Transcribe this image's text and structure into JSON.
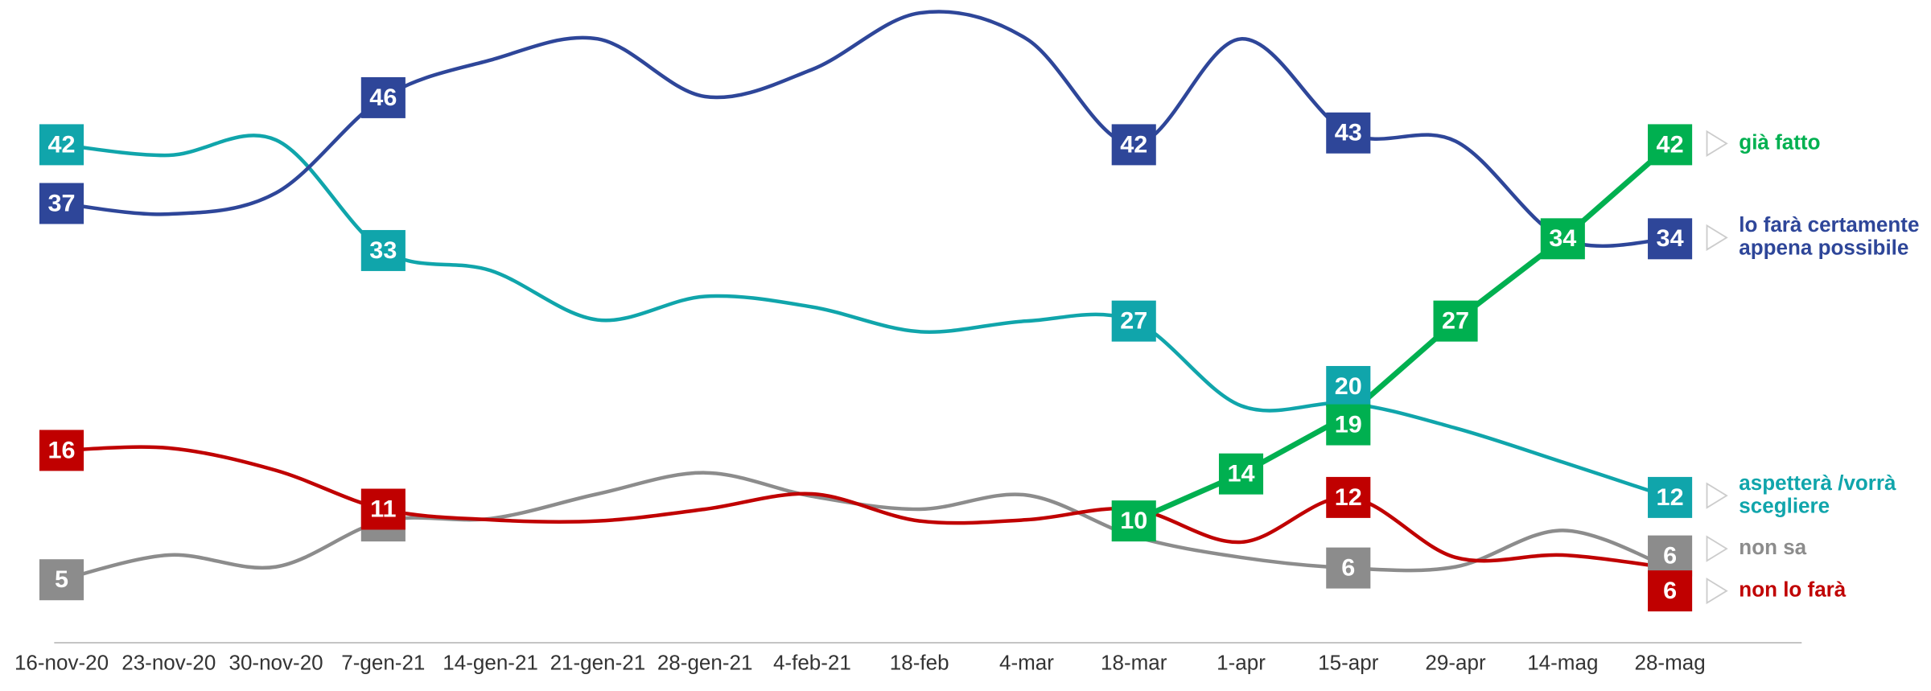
{
  "chart_data": {
    "type": "line",
    "categories": [
      "16-nov-20",
      "23-nov-20",
      "30-nov-20",
      "7-gen-21",
      "14-gen-21",
      "21-gen-21",
      "28-gen-21",
      "4-feb-21",
      "18-feb",
      "4-mar",
      "18-mar",
      "1-apr",
      "15-apr",
      "29-apr",
      "14-mag",
      "28-mag"
    ],
    "ylim": [
      0,
      54
    ],
    "series": [
      {
        "name": "già fatto",
        "color": "#00b050",
        "smooth": false,
        "values": [
          null,
          null,
          null,
          null,
          null,
          null,
          null,
          null,
          null,
          null,
          10,
          14,
          19,
          27,
          34,
          42
        ],
        "value_labels": [
          null,
          null,
          null,
          null,
          null,
          null,
          null,
          null,
          null,
          null,
          "10",
          "14",
          "19",
          "27",
          "34",
          "42"
        ]
      },
      {
        "name": "lo farà certamente appena possibile",
        "color": "#2e4699",
        "smooth": true,
        "values": [
          37,
          36.1,
          37.9,
          46,
          49.2,
          51,
          46.1,
          48.4,
          53.2,
          51,
          42,
          51,
          43,
          42.3,
          34,
          34
        ],
        "value_labels": [
          "37",
          null,
          null,
          "46",
          null,
          null,
          null,
          null,
          null,
          null,
          "42",
          null,
          "43",
          null,
          null,
          "34"
        ]
      },
      {
        "name": "aspetterà /vorrà scegliere",
        "color": "#10a5ab",
        "smooth": true,
        "values": [
          42,
          41.1,
          42.4,
          33,
          31.3,
          27.1,
          29.1,
          28.2,
          26.1,
          27,
          27,
          19.8,
          20,
          17.9,
          15,
          12
        ],
        "value_labels": [
          "42",
          null,
          null,
          "33",
          null,
          null,
          null,
          null,
          null,
          null,
          "27",
          null,
          "20",
          null,
          null,
          "12"
        ]
      },
      {
        "name": "non sa",
        "color": "#8c8c8c",
        "smooth": true,
        "values": [
          5,
          7.1,
          6.1,
          10,
          10.2,
          12.3,
          14.1,
          12.1,
          11,
          12.2,
          8.7,
          6.9,
          6,
          6.1,
          9.2,
          6
        ],
        "value_labels": [
          "5",
          null,
          null,
          "10",
          null,
          null,
          null,
          null,
          null,
          null,
          null,
          null,
          "6",
          null,
          null,
          "6"
        ]
      },
      {
        "name": "non lo farà",
        "color": "#c00000",
        "smooth": true,
        "values": [
          16,
          16.2,
          14.3,
          11,
          10.1,
          10,
          11,
          12.3,
          10,
          10.1,
          11,
          8.2,
          12,
          6.9,
          7.1,
          6
        ],
        "value_labels": [
          "16",
          null,
          null,
          "11",
          null,
          null,
          null,
          null,
          null,
          null,
          null,
          null,
          "12",
          null,
          null,
          "6"
        ]
      }
    ]
  }
}
